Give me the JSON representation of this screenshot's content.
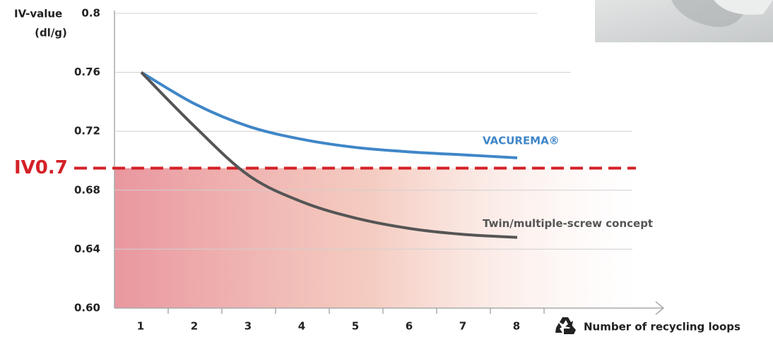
{
  "chart_data": {
    "type": "line",
    "y_axis_title": "IV-value",
    "y_axis_unit": "(dl/g)",
    "x_axis_title": "Number of recycling loops",
    "categories": [
      "1",
      "2",
      "3",
      "4",
      "5",
      "6",
      "7",
      "8"
    ],
    "series": [
      {
        "name": "VACUREMA®",
        "color": "#3f86c8",
        "values": [
          0.76,
          0.7385,
          0.7233,
          0.7145,
          0.709,
          0.706,
          0.704,
          0.702
        ]
      },
      {
        "name": "Twin/multiple-screw concept",
        "color": "#555555",
        "values": [
          0.76,
          0.723,
          0.69,
          0.672,
          0.661,
          0.654,
          0.65,
          0.648
        ]
      }
    ],
    "threshold": {
      "value": 0.695,
      "label": "IV0.7",
      "color": "#d42027"
    },
    "ylim": [
      0.6,
      0.8
    ],
    "yticks": [
      {
        "value": 0.6,
        "label": "0.60"
      },
      0.64,
      0.68,
      0.72,
      0.76,
      0.8
    ],
    "grid": true
  }
}
